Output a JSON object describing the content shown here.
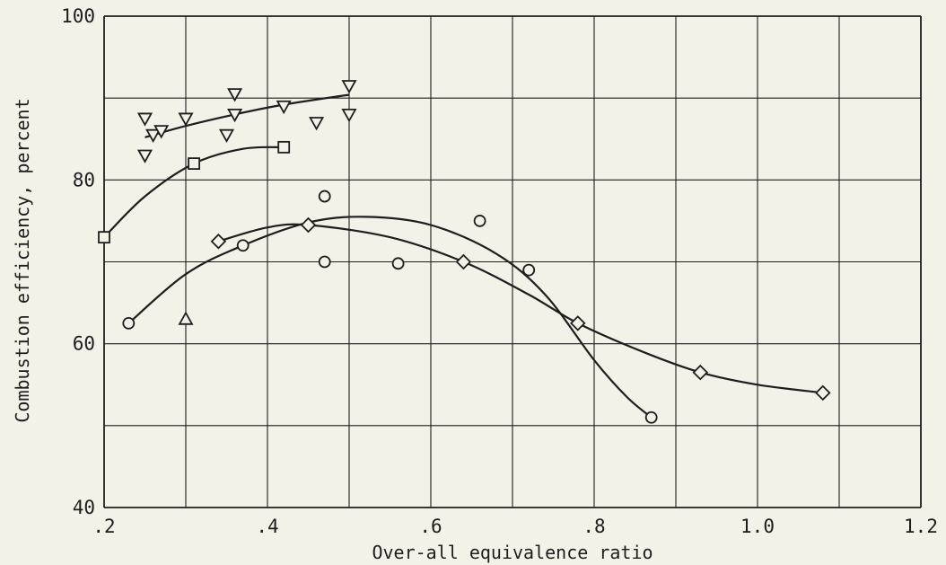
{
  "chart_data": {
    "type": "scatter",
    "title": "",
    "xlabel": "Over-all equivalence ratio",
    "ylabel": "Combustion efficiency, percent",
    "xlim": [
      0.2,
      1.2
    ],
    "ylim": [
      40,
      100
    ],
    "x_tick_labels": [
      ".2",
      ".4",
      ".6",
      ".8",
      "1.0",
      "1.2"
    ],
    "y_tick_labels": [
      "40",
      "60",
      "80",
      "100"
    ],
    "grid": true,
    "legend": "none",
    "line_color": "#1e1e1e",
    "background": "#f3f1e8",
    "series": [
      {
        "marker": "triangle-down",
        "points": [
          [
            0.25,
            87.5
          ],
          [
            0.26,
            85.5
          ],
          [
            0.25,
            83
          ],
          [
            0.27,
            86
          ],
          [
            0.3,
            87.5
          ],
          [
            0.36,
            90.5
          ],
          [
            0.36,
            88
          ],
          [
            0.35,
            85.5
          ],
          [
            0.42,
            89
          ],
          [
            0.46,
            87
          ],
          [
            0.5,
            91.5
          ],
          [
            0.5,
            88
          ]
        ],
        "curve": [
          [
            0.25,
            85.2
          ],
          [
            0.3,
            86.6
          ],
          [
            0.36,
            88.0
          ],
          [
            0.42,
            89.2
          ],
          [
            0.5,
            90.4
          ]
        ]
      },
      {
        "marker": "square",
        "points": [
          [
            0.2,
            73
          ],
          [
            0.31,
            82
          ],
          [
            0.42,
            84
          ]
        ],
        "curve": [
          [
            0.2,
            73.0
          ],
          [
            0.25,
            78.0
          ],
          [
            0.31,
            82.0
          ],
          [
            0.37,
            83.8
          ],
          [
            0.42,
            84.0
          ]
        ]
      },
      {
        "marker": "circle",
        "points": [
          [
            0.23,
            62.5
          ],
          [
            0.37,
            72
          ],
          [
            0.47,
            78
          ],
          [
            0.47,
            70
          ],
          [
            0.56,
            69.8
          ],
          [
            0.66,
            75
          ],
          [
            0.72,
            69
          ],
          [
            0.87,
            51
          ]
        ],
        "curve": [
          [
            0.23,
            62.5
          ],
          [
            0.3,
            68.5
          ],
          [
            0.37,
            72.0
          ],
          [
            0.45,
            74.8
          ],
          [
            0.52,
            75.5
          ],
          [
            0.6,
            74.5
          ],
          [
            0.68,
            71.0
          ],
          [
            0.74,
            66.0
          ],
          [
            0.8,
            58.0
          ],
          [
            0.84,
            53.5
          ],
          [
            0.87,
            51.0
          ]
        ]
      },
      {
        "marker": "diamond",
        "points": [
          [
            0.34,
            72.5
          ],
          [
            0.45,
            74.5
          ],
          [
            0.64,
            70
          ],
          [
            0.78,
            62.5
          ],
          [
            0.93,
            56.5
          ],
          [
            1.08,
            54
          ]
        ],
        "curve": [
          [
            0.34,
            72.5
          ],
          [
            0.4,
            74.2
          ],
          [
            0.45,
            74.5
          ],
          [
            0.55,
            73.0
          ],
          [
            0.64,
            70.0
          ],
          [
            0.72,
            66.0
          ],
          [
            0.78,
            62.5
          ],
          [
            0.86,
            59.0
          ],
          [
            0.93,
            56.5
          ],
          [
            1.0,
            55.0
          ],
          [
            1.08,
            54.0
          ]
        ]
      },
      {
        "marker": "triangle-up",
        "points": [
          [
            0.3,
            63
          ]
        ],
        "curve": []
      }
    ]
  }
}
